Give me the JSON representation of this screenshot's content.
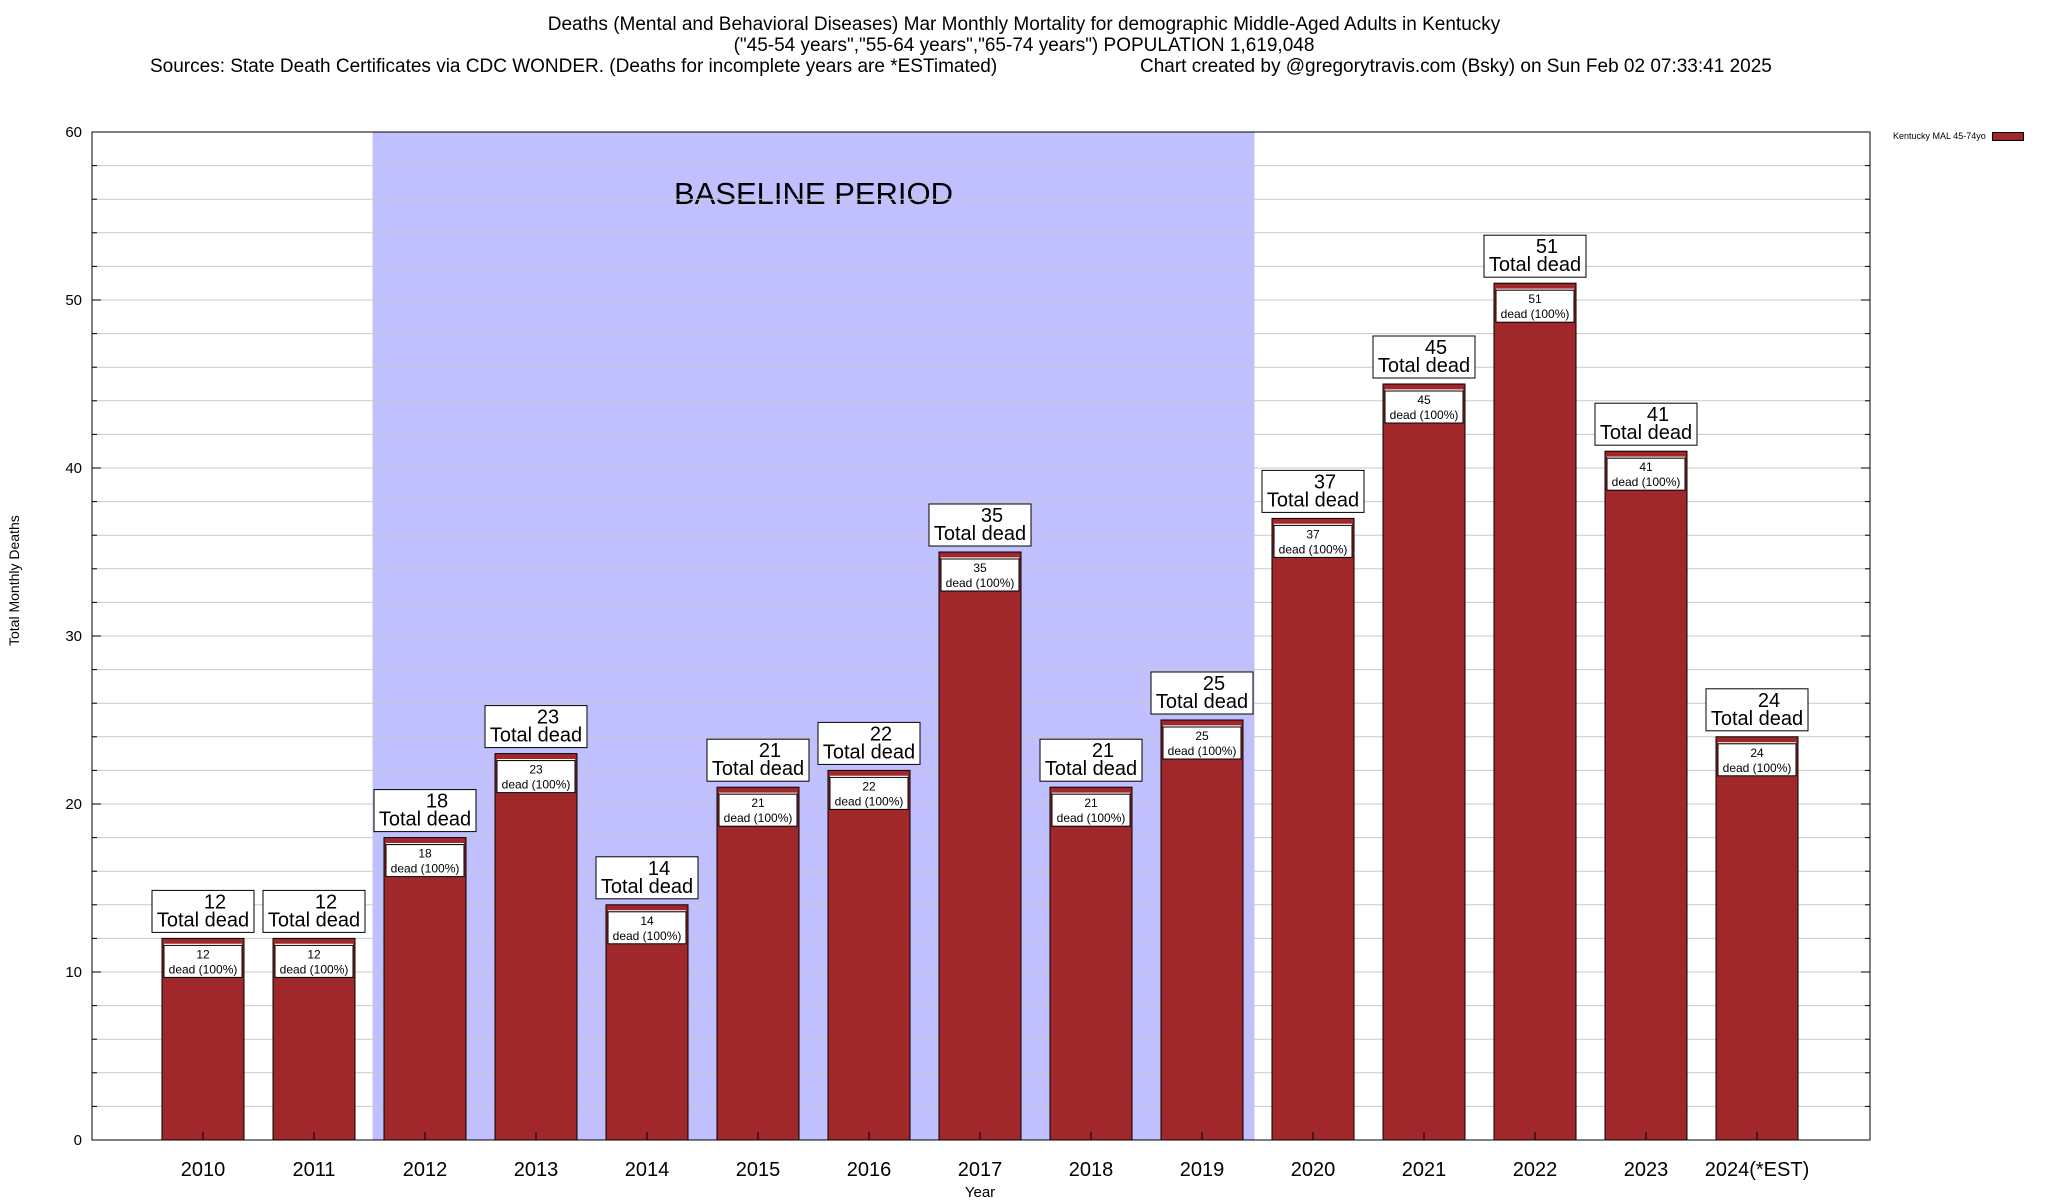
{
  "header": {
    "line1": "Deaths (Mental and Behavioral Diseases) Mar Monthly Mortality for demographic Middle-Aged Adults in Kentucky",
    "line2": "(\"45-54 years\",\"55-64 years\",\"65-74 years\") POPULATION 1,619,048",
    "sources": "Sources: State Death Certificates via CDC WONDER. (Deaths for incomplete years are *ESTimated)",
    "credit": "Chart created by @gregorytravis.com (Bsky) on Sun Feb 02 07:33:41 2025"
  },
  "legend": {
    "label": "Kentucky MAL 45-74yo"
  },
  "colors": {
    "bar": "#a0282a",
    "baseline_band": "#c0c0ff"
  },
  "chart_data": {
    "type": "bar",
    "title": "Deaths (Mental and Behavioral Diseases) Mar Monthly Mortality for demographic Middle-Aged Adults in Kentucky",
    "xlabel": "Year",
    "ylabel": "Total Monthly Deaths",
    "ylim": [
      0,
      60
    ],
    "yticks": [
      0,
      10,
      20,
      30,
      40,
      50,
      60
    ],
    "grid": true,
    "legend_position": "top-right",
    "categories": [
      "2010",
      "2011",
      "2012",
      "2013",
      "2014",
      "2015",
      "2016",
      "2017",
      "2018",
      "2019",
      "2020",
      "2021",
      "2022",
      "2023",
      "2024(*EST)"
    ],
    "series": [
      {
        "name": "Kentucky MAL 45-74yo",
        "values": [
          12,
          12,
          18,
          23,
          14,
          21,
          22,
          35,
          21,
          25,
          37,
          45,
          51,
          41,
          24
        ]
      }
    ],
    "annotation_total": "Total dead",
    "annotation_share": "dead (100%)",
    "baseline": {
      "label": "BASELINE PERIOD",
      "from": "2012",
      "to": "2019"
    }
  }
}
